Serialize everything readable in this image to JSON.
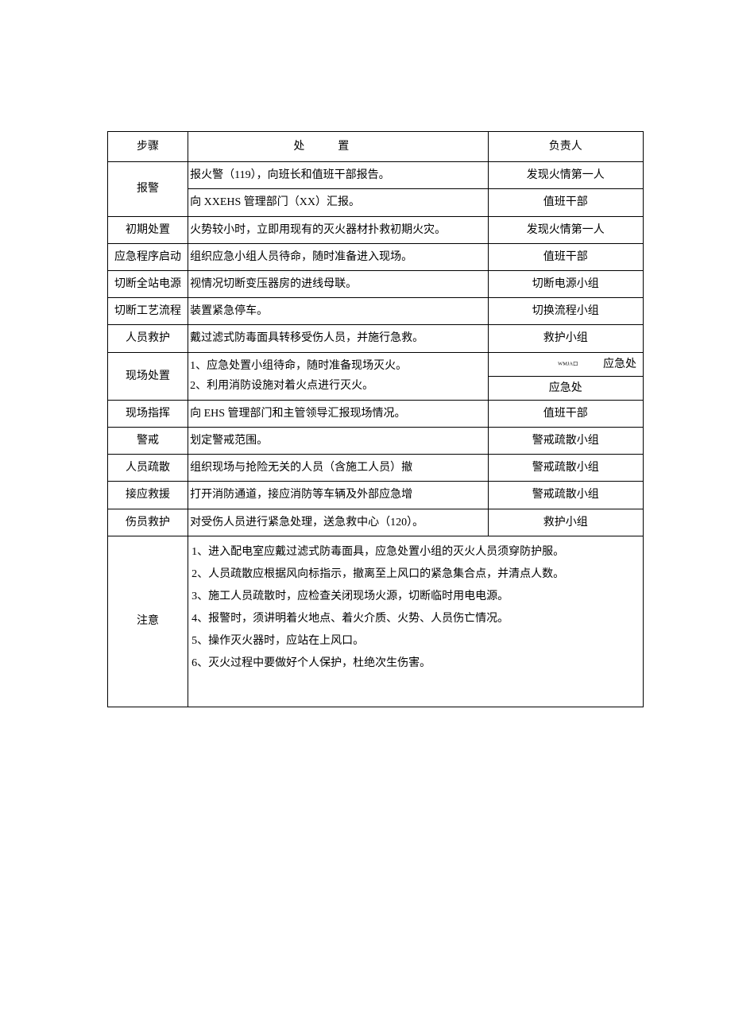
{
  "table": {
    "headers": {
      "step": "步骤",
      "action": "处置",
      "responsible": "负责人"
    },
    "rows": [
      {
        "step": "报警",
        "actions": [
          {
            "text": "报火警（119），向班长和值班干部报告。",
            "resp": "发现火情第一人"
          },
          {
            "text": "向 XXEHS 管理部门（XX）汇报。",
            "resp": "值班干部"
          }
        ]
      },
      {
        "step": "初期处置",
        "actions": [
          {
            "text": "火势较小时，立即用现有的灭火器材扑救初期火灾。",
            "resp": "发现火情第一人"
          }
        ]
      },
      {
        "step": "应急程序启动",
        "actions": [
          {
            "text": "组织应急小组人员待命，随时准备进入现场。",
            "resp": "值班干部"
          }
        ]
      },
      {
        "step": "切断全站电源",
        "actions": [
          {
            "text": "视情况切断变压器房的进线母联。",
            "resp": "切断电源小组"
          }
        ]
      },
      {
        "step": "切断工艺流程",
        "actions": [
          {
            "text": "装置紧急停车。",
            "resp": "切换流程小组"
          }
        ]
      },
      {
        "step": "人员救护",
        "actions": [
          {
            "text": "戴过滤式防毒面具转移受伤人员，并施行急救。",
            "resp": "救护小组"
          }
        ]
      },
      {
        "step": "现场处置",
        "actions_merged": [
          "1、应急处置小组待命，随时准备现场灭火。",
          "2、利用消防设施对着火点进行灭火。"
        ],
        "resp_split": [
          {
            "mark": "WMJA口",
            "text": "应急处"
          },
          {
            "text": "应急处"
          }
        ]
      },
      {
        "step": "现场指挥",
        "actions": [
          {
            "text": "向 EHS 管理部门和主管领导汇报现场情况。",
            "resp": "值班干部"
          }
        ]
      },
      {
        "step": "警戒",
        "actions": [
          {
            "text": "划定警戒范围。",
            "resp": "警戒疏散小组"
          }
        ]
      },
      {
        "step": "人员疏散",
        "actions": [
          {
            "text": "组织现场与抢险无关的人员（含施工人员）撤",
            "resp": "警戒疏散小组"
          }
        ]
      },
      {
        "step": "接应救援",
        "actions": [
          {
            "text": "打开消防通道，接应消防等车辆及外部应急增",
            "resp": "警戒疏散小组"
          }
        ]
      },
      {
        "step": "伤员救护",
        "actions": [
          {
            "text": "对受伤人员进行紧急处理，送急救中心（120）。",
            "resp": "救护小组"
          }
        ]
      }
    ],
    "notes": {
      "label": "注意",
      "lines": [
        "1、进入配电室应戴过滤式防毒面具，应急处置小组的灭火人员须穿防护服。",
        "2、人员疏散应根据风向标指示，撤离至上风口的紧急集合点，并清点人数。",
        "3、施工人员疏散时，应检查关闭现场火源，切断临时用电电源。",
        "4、报警时，须讲明着火地点、着火介质、火势、人员伤亡情况。",
        "5、操作灭火器时，应站在上风口。",
        "6、灭火过程中要做好个人保护，杜绝次生伤害。"
      ]
    }
  },
  "style": {
    "font_family": "SimSun",
    "font_size_pt": 10.5,
    "border_color": "#000000",
    "background_color": "#ffffff",
    "text_color": "#000000",
    "col_widths_pct": [
      15,
      56,
      29
    ]
  }
}
